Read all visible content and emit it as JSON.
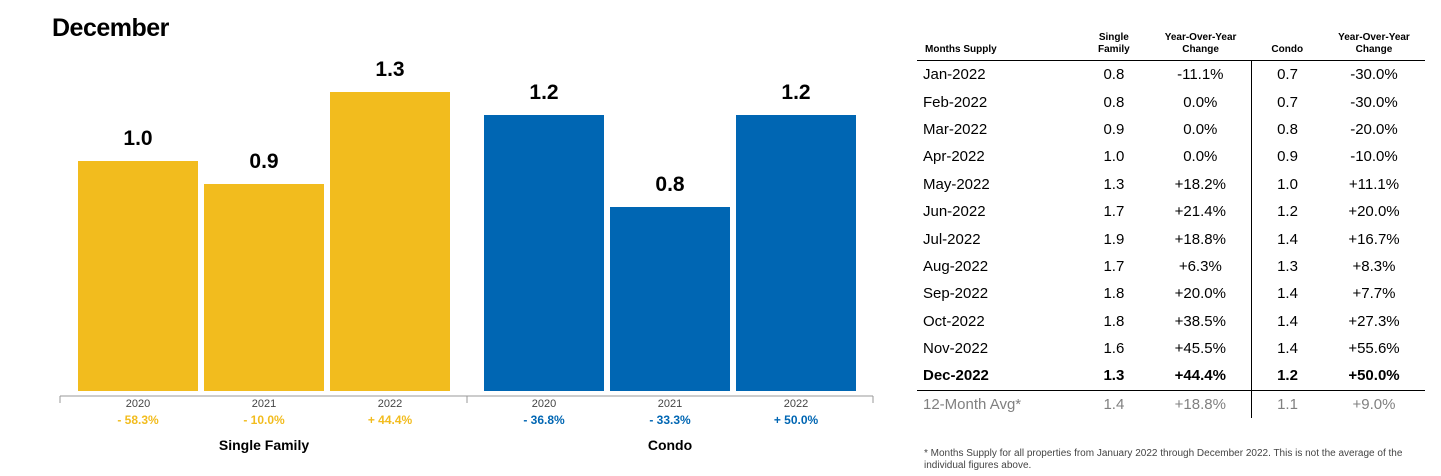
{
  "title": "December",
  "colors": {
    "single_family": "#f2bc1e",
    "condo": "#0066b3",
    "axis": "#999999",
    "avg_text": "#808080"
  },
  "chart_data": {
    "type": "bar",
    "groups": [
      {
        "name": "Single Family",
        "color": "#f2bc1e",
        "categories": [
          "2020",
          "2021",
          "2022"
        ],
        "values": [
          1.0,
          0.9,
          1.3
        ],
        "value_labels": [
          "1.0",
          "0.9",
          "1.3"
        ],
        "changes": [
          "- 58.3%",
          "- 10.0%",
          "+ 44.4%"
        ]
      },
      {
        "name": "Condo",
        "color": "#0066b3",
        "categories": [
          "2020",
          "2021",
          "2022"
        ],
        "values": [
          1.2,
          0.8,
          1.2
        ],
        "value_labels": [
          "1.2",
          "0.8",
          "1.2"
        ],
        "changes": [
          "- 36.8%",
          "- 33.3%",
          "+ 50.0%"
        ]
      }
    ],
    "ylim": [
      0,
      1.3
    ],
    "grid": false
  },
  "table": {
    "headers": [
      "Months Supply",
      "Single Family",
      "Year-Over-Year Change",
      "Condo",
      "Year-Over-Year Change"
    ],
    "rows": [
      [
        "Jan-2022",
        "0.8",
        "-11.1%",
        "0.7",
        "-30.0%"
      ],
      [
        "Feb-2022",
        "0.8",
        "0.0%",
        "0.7",
        "-30.0%"
      ],
      [
        "Mar-2022",
        "0.9",
        "0.0%",
        "0.8",
        "-20.0%"
      ],
      [
        "Apr-2022",
        "1.0",
        "0.0%",
        "0.9",
        "-10.0%"
      ],
      [
        "May-2022",
        "1.3",
        "+18.2%",
        "1.0",
        "+11.1%"
      ],
      [
        "Jun-2022",
        "1.7",
        "+21.4%",
        "1.2",
        "+20.0%"
      ],
      [
        "Jul-2022",
        "1.9",
        "+18.8%",
        "1.4",
        "+16.7%"
      ],
      [
        "Aug-2022",
        "1.7",
        "+6.3%",
        "1.3",
        "+8.3%"
      ],
      [
        "Sep-2022",
        "1.8",
        "+20.0%",
        "1.4",
        "+7.7%"
      ],
      [
        "Oct-2022",
        "1.8",
        "+38.5%",
        "1.4",
        "+27.3%"
      ],
      [
        "Nov-2022",
        "1.6",
        "+45.5%",
        "1.4",
        "+55.6%"
      ],
      [
        "Dec-2022",
        "1.3",
        "+44.4%",
        "1.2",
        "+50.0%"
      ]
    ],
    "avg_row": [
      "12-Month Avg*",
      "1.4",
      "+18.8%",
      "1.1",
      "+9.0%"
    ],
    "bold_row_label": "Dec-2022"
  },
  "footnote": "* Months Supply for all properties from January 2022 through December 2022. This is not the average of the individual figures above."
}
